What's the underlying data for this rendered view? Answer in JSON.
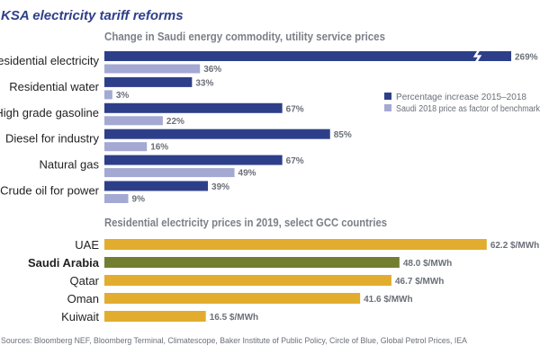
{
  "title": "KSA electricity tariff reforms",
  "sources": "Sources: Bloomberg NEF, Bloomberg Terminal, Climatescope, Baker Institute of Public Policy, Circle of Blue, Global Petrol Prices, IEA",
  "colors": {
    "dark_blue": "#2e3f8a",
    "light_blue": "#a4a9d3",
    "gold": "#e2ad2e",
    "olive": "#737e31",
    "title": "#2e3f8a"
  },
  "chart_data": [
    {
      "type": "bar",
      "orientation": "horizontal",
      "title": "Change in Saudi energy commodity, utility service prices",
      "categories": [
        "Residential electricity",
        "Residential water",
        "High grade gasoline",
        "Diesel for industry",
        "Natural gas",
        "Crude oil for power"
      ],
      "series": [
        {
          "name": "Percentage increase 2015–2018",
          "values": [
            269,
            33,
            67,
            85,
            67,
            39
          ],
          "labels": [
            "269%",
            "33%",
            "67%",
            "85%",
            "67%",
            "39%"
          ],
          "color": "#2e3f8a"
        },
        {
          "name": "Saudi 2018 price as factor of benchmark",
          "values": [
            36,
            3,
            22,
            16,
            49,
            9
          ],
          "labels": [
            "36%",
            "3%",
            "22%",
            "16%",
            "49%",
            "9%"
          ],
          "color": "#a4a9d3"
        }
      ],
      "axis_break": "Residential electricity bar truncated",
      "legend": "right",
      "grid": false
    },
    {
      "type": "bar",
      "orientation": "horizontal",
      "title": "Residential electricity prices in 2019, select GCC countries",
      "categories": [
        "UAE",
        "Saudi Arabia",
        "Qatar",
        "Oman",
        "Kuiwait"
      ],
      "values": [
        62.2,
        48.0,
        46.7,
        41.6,
        16.5
      ],
      "labels": [
        "62.2 $/MWh",
        "48.0 $/MWh",
        "46.7 $/MWh",
        "41.6 $/MWh",
        "16.5 $/MWh"
      ],
      "unit": "$/MWh",
      "highlight": "Saudi Arabia",
      "grid": false
    }
  ]
}
